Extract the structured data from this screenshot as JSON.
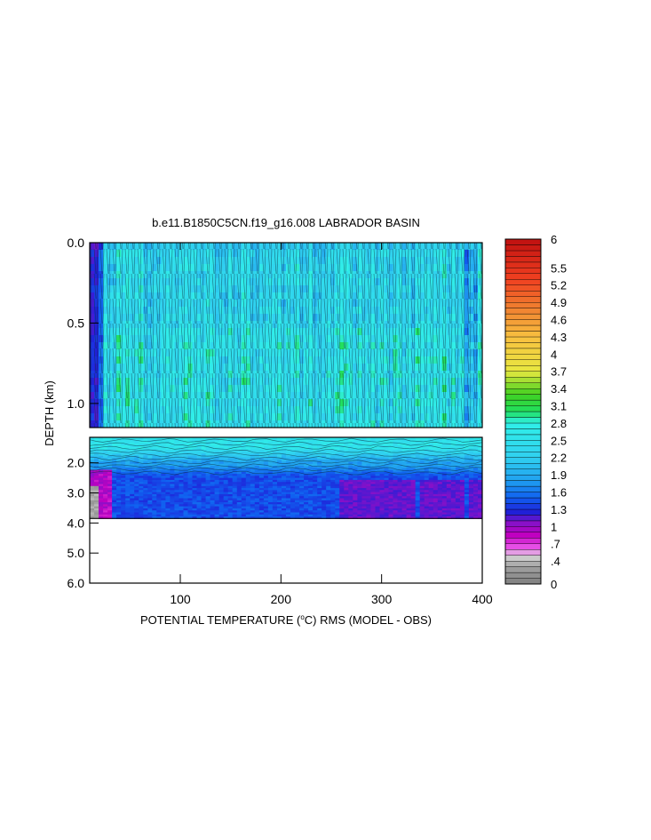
{
  "chart_data": {
    "type": "heatmap",
    "title": "b.e11.B1850C5CN.f19_g16.008 LABRADOR BASIN",
    "xlabel": {
      "prefix": "POTENTIAL TEMPERATURE (",
      "degree": "o",
      "unit": "C",
      "suffix": ") RMS (MODEL - OBS)"
    },
    "ylabel": "DEPTH (km)",
    "xlim": [
      10,
      400
    ],
    "x_ticks": [
      "100",
      "200",
      "300",
      "400"
    ],
    "x_tick_values": [
      100,
      200,
      300,
      400
    ],
    "upper_panel": {
      "ylim": [
        0.0,
        1.15
      ],
      "y_ticks": [
        "0.0",
        "0.5",
        "1.0"
      ],
      "y_tick_values": [
        0.0,
        0.5,
        1.0
      ]
    },
    "lower_panel": {
      "ylim": [
        1.15,
        6.0
      ],
      "y_ticks": [
        "2.0",
        "3.0",
        "4.0",
        "5.0",
        "6.0"
      ],
      "y_tick_values": [
        2.0,
        3.0,
        4.0,
        5.0,
        6.0
      ]
    },
    "bottom_depth_km": 3.85,
    "colorbar": {
      "range": [
        0,
        6
      ],
      "labels": [
        "6",
        "5.5",
        "5.2",
        "4.9",
        "4.6",
        "4.3",
        "4",
        "3.7",
        "3.4",
        "3.1",
        "2.8",
        "2.5",
        "2.2",
        "1.9",
        "1.6",
        "1.3",
        "1",
        ".7",
        ".4",
        "0"
      ],
      "label_values": [
        6,
        5.5,
        5.2,
        4.9,
        4.6,
        4.3,
        4,
        3.7,
        3.4,
        3.1,
        2.8,
        2.5,
        2.2,
        1.9,
        1.6,
        1.3,
        1,
        0.7,
        0.4,
        0
      ],
      "color_stops": [
        {
          "v": 0.0,
          "c": "#808080"
        },
        {
          "v": 0.3,
          "c": "#a0a0a0"
        },
        {
          "v": 0.5,
          "c": "#d8d8d8"
        },
        {
          "v": 0.6,
          "c": "#f060f0"
        },
        {
          "v": 0.85,
          "c": "#c000c0"
        },
        {
          "v": 1.05,
          "c": "#8a10c8"
        },
        {
          "v": 1.25,
          "c": "#2020d8"
        },
        {
          "v": 1.5,
          "c": "#1060f0"
        },
        {
          "v": 1.8,
          "c": "#20a0f0"
        },
        {
          "v": 2.2,
          "c": "#30d0f0"
        },
        {
          "v": 2.8,
          "c": "#30f0e8"
        },
        {
          "v": 3.0,
          "c": "#20e060"
        },
        {
          "v": 3.3,
          "c": "#40d020"
        },
        {
          "v": 3.7,
          "c": "#e8e840"
        },
        {
          "v": 4.3,
          "c": "#f8c040"
        },
        {
          "v": 4.8,
          "c": "#f08030"
        },
        {
          "v": 5.3,
          "c": "#f04020"
        },
        {
          "v": 6.0,
          "c": "#c01010"
        }
      ]
    }
  }
}
